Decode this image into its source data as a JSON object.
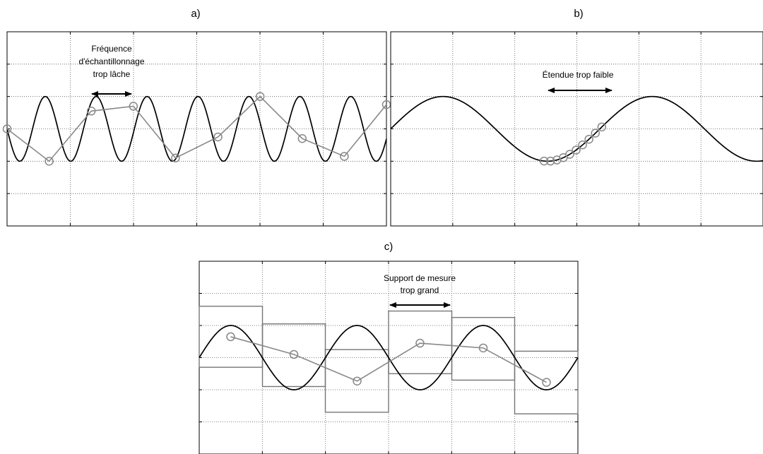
{
  "panels": [
    {
      "id": "a",
      "label": "a)",
      "annotation_lines": [
        "Fréquence",
        "d'échantillonnage",
        "trop lâche"
      ],
      "signal": {
        "amplitude": 1,
        "cycles": 7.45,
        "phase": 3.14159
      },
      "samples": [
        {
          "t": 0.0,
          "v": 0.0
        },
        {
          "t": 0.111,
          "v": -1.0
        },
        {
          "t": 0.222,
          "v": 0.55
        },
        {
          "t": 0.333,
          "v": 0.7
        },
        {
          "t": 0.444,
          "v": -0.9
        },
        {
          "t": 0.556,
          "v": -0.25
        },
        {
          "t": 0.667,
          "v": 1.0
        },
        {
          "t": 0.778,
          "v": -0.3
        },
        {
          "t": 0.889,
          "v": -0.85
        },
        {
          "t": 1.0,
          "v": 0.75
        }
      ]
    },
    {
      "id": "b",
      "label": "b)",
      "annotation_lines": [
        "Étendue trop faible"
      ],
      "signal": {
        "amplitude": 1,
        "cycles": 1.78,
        "phase": 0
      },
      "samples_range": [
        0.412,
        0.567
      ],
      "sample_count": 10
    },
    {
      "id": "c",
      "label": "c)",
      "annotation_lines": [
        "Support de mesure",
        "trop grand"
      ],
      "signal": {
        "amplitude": 1,
        "cycles": 3.0,
        "phase": 0
      },
      "boxes": [
        {
          "t0": 0.0,
          "t1": 0.167,
          "top": 1.6,
          "bottom": -0.3
        },
        {
          "t0": 0.167,
          "t1": 0.333,
          "top": 1.05,
          "bottom": -0.9
        },
        {
          "t0": 0.333,
          "t1": 0.5,
          "top": 0.25,
          "bottom": -1.7
        },
        {
          "t0": 0.5,
          "t1": 0.667,
          "top": 1.45,
          "bottom": -0.5
        },
        {
          "t0": 0.667,
          "t1": 0.833,
          "top": 1.25,
          "bottom": -0.7
        },
        {
          "t0": 0.833,
          "t1": 1.0,
          "top": 0.2,
          "bottom": -1.75
        }
      ],
      "samples": [
        {
          "t": 0.083,
          "v": 0.65
        },
        {
          "t": 0.25,
          "v": 0.1
        },
        {
          "t": 0.417,
          "v": -0.73
        },
        {
          "t": 0.583,
          "v": 0.45
        },
        {
          "t": 0.75,
          "v": 0.3
        },
        {
          "t": 0.917,
          "v": -0.77
        }
      ]
    }
  ]
}
